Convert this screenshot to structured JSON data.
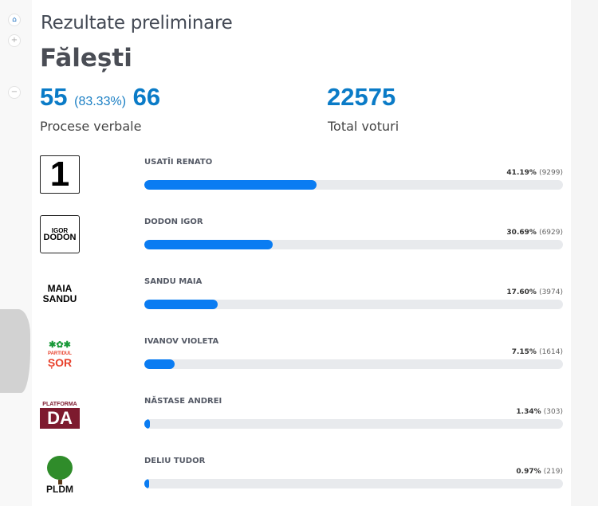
{
  "header": {
    "title": "Rezultate preliminare",
    "district": "Fălești"
  },
  "stats": {
    "processed": "55",
    "processed_pct": "(83.33%)",
    "total_pv": "66",
    "pv_label": "Procese verbale",
    "total_votes": "22575",
    "votes_label": "Total voturi"
  },
  "candidates": [
    {
      "name": "USATÎI RENATO",
      "percent": "41.19%",
      "votes": "(9299)",
      "share": 41.19,
      "logo": "1"
    },
    {
      "name": "DODON IGOR",
      "percent": "30.69%",
      "votes": "(6929)",
      "share": 30.69,
      "logo_l1": "IGOR",
      "logo_l2": "DODON"
    },
    {
      "name": "SANDU MAIA",
      "percent": "17.60%",
      "votes": "(3974)",
      "share": 17.6,
      "logo_l1": "MAIA",
      "logo_l2": "SANDU"
    },
    {
      "name": "IVANOV VIOLETA",
      "percent": "7.15%",
      "votes": "(1614)",
      "share": 7.15,
      "logo_l1": "PARTIDUL",
      "logo_l2": "ȘOR"
    },
    {
      "name": "NĂSTASE ANDREI",
      "percent": "1.34%",
      "votes": "(303)",
      "share": 1.34,
      "logo_l1": "PLATFORMA",
      "logo_l2": "DA"
    },
    {
      "name": "DELIU TUDOR",
      "percent": "0.97%",
      "votes": "(219)",
      "share": 0.97,
      "logo_l1": "PLDM"
    }
  ],
  "colors": {
    "accent": "#0a7bc7",
    "bar": "#0a7cf2",
    "track": "#e8eaed"
  }
}
